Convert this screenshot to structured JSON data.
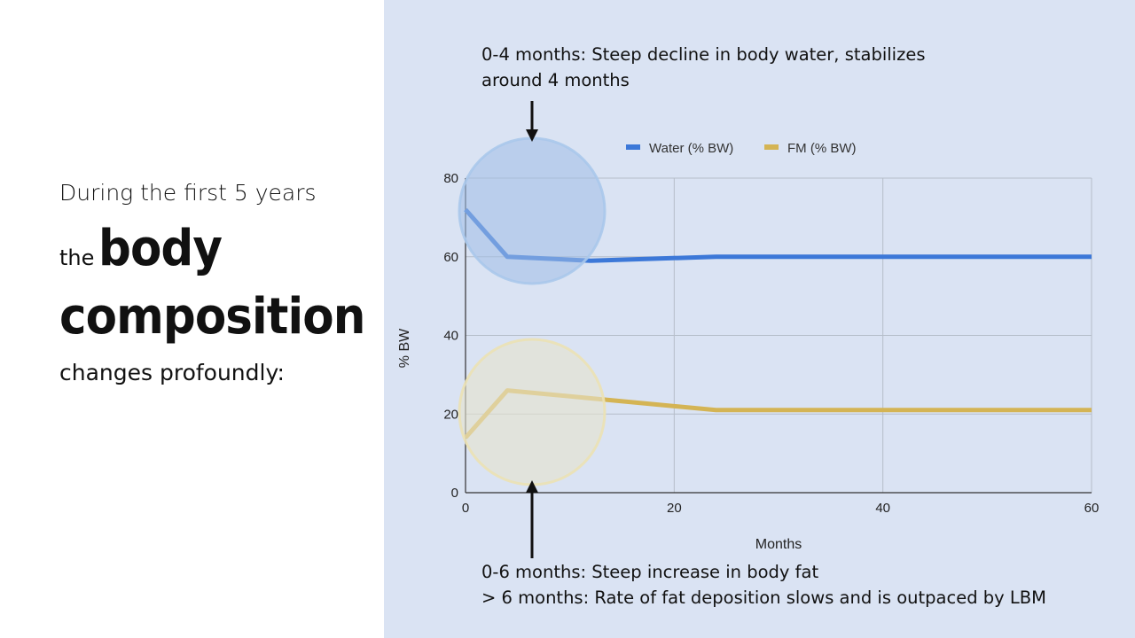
{
  "intro": {
    "line1": "During the first 5 years",
    "line2_small": "the",
    "line2_big": "body",
    "line3_big": "composition",
    "line4": "changes profoundly:"
  },
  "annotations": {
    "top": [
      "0-4 months: Steep decline in body water, stabilizes",
      "around 4 months"
    ],
    "bottom": [
      "0-6 months: Steep increase in body fat",
      "> 6 months: Rate of fat deposition slows and is outpaced by LBM"
    ]
  },
  "chart_data": {
    "type": "line",
    "xlabel": "Months",
    "ylabel": "% BW",
    "xlim": [
      0,
      60
    ],
    "ylim": [
      0,
      80
    ],
    "xticks": [
      0,
      20,
      40,
      60
    ],
    "yticks": [
      0,
      20,
      40,
      60,
      80
    ],
    "grid": true,
    "legend_position": "top",
    "series": [
      {
        "name": "Water (% BW)",
        "color": "#3c78d8",
        "x": [
          0,
          4,
          12,
          24,
          36,
          48,
          60
        ],
        "y": [
          72,
          60,
          59,
          60,
          60,
          60,
          60
        ]
      },
      {
        "name": "FM (% BW)",
        "color": "#d4b454",
        "x": [
          0,
          4,
          12,
          24,
          36,
          48,
          60
        ],
        "y": [
          14,
          26,
          24,
          21,
          21,
          21,
          21
        ]
      }
    ]
  }
}
